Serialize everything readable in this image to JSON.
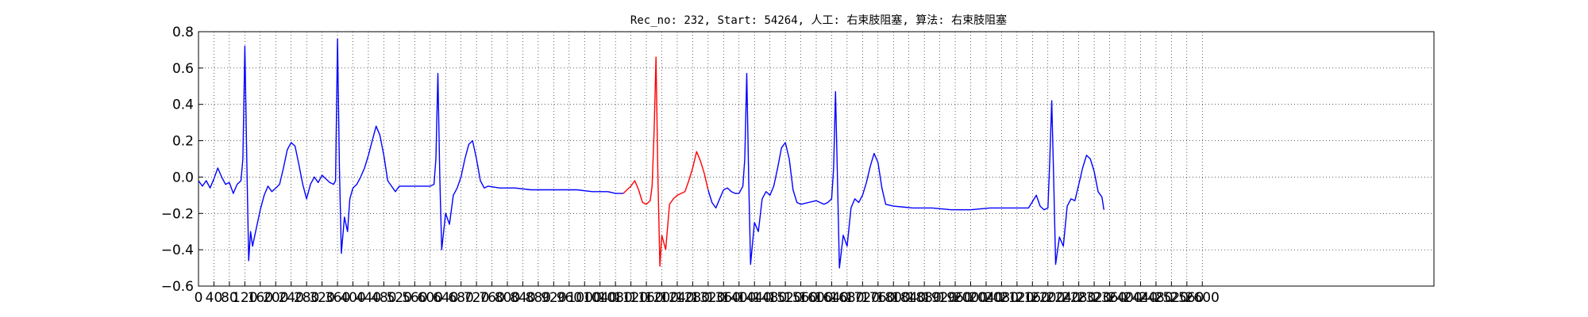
{
  "chart_data": {
    "type": "line",
    "title": "Rec_no: 232, Start: 54264, 人工: 右束肢阻塞, 算法: 右束肢阻塞",
    "xlabel": "",
    "ylabel": "",
    "xlim": [
      0,
      3200
    ],
    "ylim": [
      -0.6,
      0.8
    ],
    "yticks": [
      -0.6,
      -0.4,
      -0.2,
      0.0,
      0.2,
      0.4,
      0.6,
      0.8
    ],
    "ytick_labels": [
      "−0.6",
      "−0.4",
      "−0.2",
      "0.0",
      "0.2",
      "0.4",
      "0.6",
      "0.8"
    ],
    "xtick_labels": [
      "0",
      "40",
      "80",
      "120",
      "160",
      "200",
      "240",
      "280",
      "320",
      "360",
      "400",
      "440",
      "480",
      "520",
      "560",
      "600",
      "640",
      "680",
      "720",
      "760",
      "800",
      "840",
      "880",
      "920",
      "960",
      "1000",
      "1040",
      "1080",
      "1120",
      "1160",
      "1200",
      "1240",
      "1280",
      "1320",
      "1360",
      "1400",
      "1440",
      "1480",
      "1520",
      "1560",
      "1600",
      "1640",
      "1680",
      "1720",
      "1760",
      "1800",
      "1840",
      "1880",
      "1920",
      "1960",
      "2000",
      "2040",
      "2080",
      "2120",
      "2160",
      "2200",
      "2240",
      "2280",
      "2320",
      "2360",
      "2400",
      "2440",
      "2480",
      "2520",
      "2560",
      "2600"
    ],
    "grid": true,
    "series": [
      {
        "color": "#0000ff",
        "points": [
          [
            0,
            -0.02
          ],
          [
            10,
            -0.05
          ],
          [
            20,
            -0.02
          ],
          [
            30,
            -0.06
          ],
          [
            40,
            -0.01
          ],
          [
            50,
            0.05
          ],
          [
            60,
            0.0
          ],
          [
            70,
            -0.04
          ],
          [
            80,
            -0.03
          ],
          [
            90,
            -0.09
          ],
          [
            100,
            -0.04
          ],
          [
            110,
            -0.02
          ],
          [
            115,
            0.1
          ],
          [
            120,
            0.72
          ],
          [
            125,
            0.1
          ],
          [
            130,
            -0.46
          ],
          [
            135,
            -0.3
          ],
          [
            140,
            -0.38
          ],
          [
            150,
            -0.28
          ],
          [
            160,
            -0.18
          ],
          [
            170,
            -0.1
          ],
          [
            180,
            -0.05
          ],
          [
            190,
            -0.08
          ],
          [
            200,
            -0.06
          ],
          [
            210,
            -0.04
          ],
          [
            220,
            0.05
          ],
          [
            230,
            0.15
          ],
          [
            240,
            0.19
          ],
          [
            250,
            0.17
          ],
          [
            260,
            0.07
          ],
          [
            270,
            -0.04
          ],
          [
            280,
            -0.12
          ],
          [
            290,
            -0.04
          ],
          [
            300,
            0.0
          ],
          [
            310,
            -0.03
          ],
          [
            320,
            0.01
          ],
          [
            330,
            -0.01
          ],
          [
            340,
            -0.03
          ],
          [
            350,
            -0.04
          ],
          [
            355,
            -0.02
          ],
          [
            360,
            0.76
          ],
          [
            365,
            0.05
          ],
          [
            370,
            -0.42
          ],
          [
            378,
            -0.22
          ],
          [
            386,
            -0.3
          ],
          [
            392,
            -0.12
          ],
          [
            400,
            -0.06
          ],
          [
            410,
            -0.04
          ],
          [
            420,
            0.0
          ],
          [
            430,
            0.05
          ],
          [
            440,
            0.12
          ],
          [
            450,
            0.2
          ],
          [
            460,
            0.28
          ],
          [
            470,
            0.23
          ],
          [
            480,
            0.12
          ],
          [
            490,
            -0.02
          ],
          [
            500,
            -0.05
          ],
          [
            510,
            -0.08
          ],
          [
            520,
            -0.05
          ],
          [
            540,
            -0.05
          ],
          [
            560,
            -0.05
          ],
          [
            580,
            -0.05
          ],
          [
            600,
            -0.05
          ],
          [
            610,
            -0.04
          ],
          [
            615,
            0.1
          ],
          [
            620,
            0.57
          ],
          [
            625,
            0.0
          ],
          [
            630,
            -0.4
          ],
          [
            640,
            -0.2
          ],
          [
            650,
            -0.26
          ],
          [
            660,
            -0.1
          ],
          [
            670,
            -0.06
          ],
          [
            680,
            0.0
          ],
          [
            690,
            0.1
          ],
          [
            700,
            0.18
          ],
          [
            710,
            0.2
          ],
          [
            720,
            0.1
          ],
          [
            730,
            -0.02
          ],
          [
            740,
            -0.06
          ],
          [
            750,
            -0.05
          ],
          [
            780,
            -0.06
          ],
          [
            820,
            -0.06
          ],
          [
            860,
            -0.07
          ],
          [
            900,
            -0.07
          ],
          [
            940,
            -0.07
          ],
          [
            980,
            -0.07
          ],
          [
            1020,
            -0.08
          ],
          [
            1060,
            -0.08
          ],
          [
            1080,
            -0.09
          ],
          [
            1100,
            -0.09
          ]
        ]
      },
      {
        "color": "#ff0000",
        "points": [
          [
            1100,
            -0.09
          ],
          [
            1120,
            -0.05
          ],
          [
            1130,
            -0.02
          ],
          [
            1140,
            -0.07
          ],
          [
            1150,
            -0.14
          ],
          [
            1160,
            -0.15
          ],
          [
            1170,
            -0.13
          ],
          [
            1175,
            -0.05
          ],
          [
            1180,
            0.25
          ],
          [
            1185,
            0.66
          ],
          [
            1190,
            0.0
          ],
          [
            1195,
            -0.49
          ],
          [
            1200,
            -0.32
          ],
          [
            1210,
            -0.4
          ],
          [
            1220,
            -0.15
          ],
          [
            1230,
            -0.12
          ],
          [
            1240,
            -0.1
          ],
          [
            1250,
            -0.09
          ],
          [
            1260,
            -0.08
          ],
          [
            1270,
            -0.02
          ],
          [
            1280,
            0.05
          ],
          [
            1290,
            0.14
          ],
          [
            1300,
            0.09
          ],
          [
            1310,
            0.02
          ],
          [
            1320,
            -0.07
          ]
        ]
      },
      {
        "color": "#0000ff",
        "points": [
          [
            1320,
            -0.07
          ],
          [
            1330,
            -0.14
          ],
          [
            1340,
            -0.17
          ],
          [
            1350,
            -0.12
          ],
          [
            1360,
            -0.07
          ],
          [
            1370,
            -0.06
          ],
          [
            1380,
            -0.08
          ],
          [
            1390,
            -0.09
          ],
          [
            1400,
            -0.09
          ],
          [
            1410,
            -0.05
          ],
          [
            1415,
            0.1
          ],
          [
            1420,
            0.57
          ],
          [
            1425,
            0.0
          ],
          [
            1430,
            -0.48
          ],
          [
            1440,
            -0.25
          ],
          [
            1450,
            -0.3
          ],
          [
            1460,
            -0.12
          ],
          [
            1470,
            -0.08
          ],
          [
            1480,
            -0.1
          ],
          [
            1490,
            -0.05
          ],
          [
            1500,
            0.05
          ],
          [
            1510,
            0.16
          ],
          [
            1520,
            0.19
          ],
          [
            1530,
            0.1
          ],
          [
            1540,
            -0.07
          ],
          [
            1550,
            -0.14
          ],
          [
            1560,
            -0.15
          ],
          [
            1580,
            -0.14
          ],
          [
            1600,
            -0.13
          ],
          [
            1620,
            -0.15
          ],
          [
            1630,
            -0.14
          ],
          [
            1640,
            -0.12
          ],
          [
            1645,
            0.05
          ],
          [
            1650,
            0.47
          ],
          [
            1655,
            0.0
          ],
          [
            1660,
            -0.5
          ],
          [
            1670,
            -0.32
          ],
          [
            1680,
            -0.38
          ],
          [
            1690,
            -0.17
          ],
          [
            1700,
            -0.12
          ],
          [
            1710,
            -0.14
          ],
          [
            1720,
            -0.1
          ],
          [
            1730,
            -0.03
          ],
          [
            1740,
            0.06
          ],
          [
            1750,
            0.13
          ],
          [
            1760,
            0.08
          ],
          [
            1770,
            -0.06
          ],
          [
            1780,
            -0.15
          ],
          [
            1800,
            -0.16
          ],
          [
            1850,
            -0.17
          ],
          [
            1900,
            -0.17
          ],
          [
            1950,
            -0.18
          ],
          [
            2000,
            -0.18
          ],
          [
            2050,
            -0.17
          ],
          [
            2100,
            -0.17
          ],
          [
            2150,
            -0.17
          ],
          [
            2170,
            -0.1
          ],
          [
            2180,
            -0.16
          ],
          [
            2190,
            -0.18
          ],
          [
            2200,
            -0.17
          ],
          [
            2205,
            0.1
          ],
          [
            2210,
            0.42
          ],
          [
            2215,
            0.0
          ],
          [
            2220,
            -0.48
          ],
          [
            2230,
            -0.33
          ],
          [
            2240,
            -0.38
          ],
          [
            2250,
            -0.16
          ],
          [
            2260,
            -0.12
          ],
          [
            2270,
            -0.13
          ],
          [
            2280,
            -0.04
          ],
          [
            2290,
            0.05
          ],
          [
            2300,
            0.12
          ],
          [
            2310,
            0.1
          ],
          [
            2320,
            0.03
          ],
          [
            2330,
            -0.08
          ],
          [
            2340,
            -0.11
          ],
          [
            2345,
            -0.18
          ]
        ]
      }
    ]
  }
}
